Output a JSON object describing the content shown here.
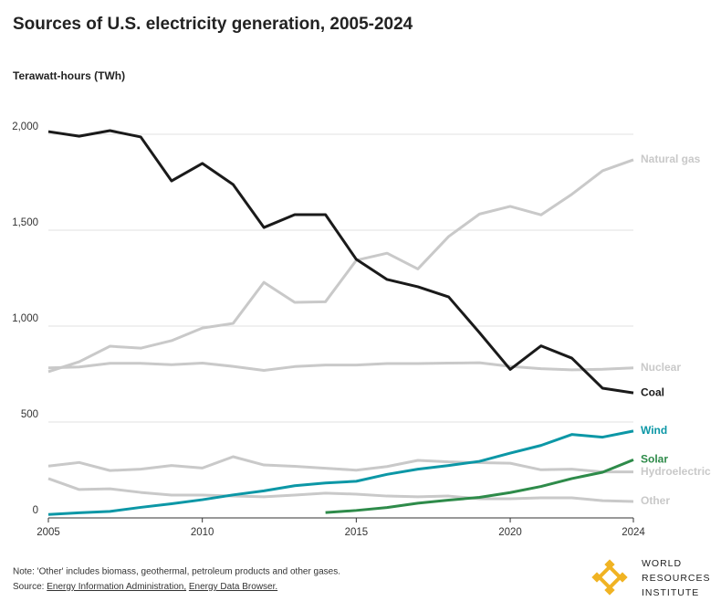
{
  "chart_data": {
    "type": "line",
    "title": "Sources of U.S. electricity generation, 2005-2024",
    "y_label": "Terawatt-hours (TWh)",
    "x": [
      2005,
      2006,
      2007,
      2008,
      2009,
      2010,
      2011,
      2012,
      2013,
      2014,
      2015,
      2016,
      2017,
      2018,
      2019,
      2020,
      2021,
      2022,
      2023,
      2024
    ],
    "xlim": [
      2005,
      2024
    ],
    "xticks": [
      2005,
      2010,
      2015,
      2020,
      2024
    ],
    "ylim": [
      0,
      2000
    ],
    "yticks": [
      0,
      500,
      {
        "value": 1000,
        "label": "1,000"
      },
      {
        "value": 1500,
        "label": "1,500"
      },
      {
        "value": 2000,
        "label": "2,000"
      }
    ],
    "grid": true,
    "series": [
      {
        "name": "Natural gas",
        "color": "#c9c9c9",
        "values": [
          762,
          814,
          895,
          885,
          924,
          990,
          1014,
          1228,
          1124,
          1127,
          1343,
          1380,
          1298,
          1467,
          1584,
          1624,
          1580,
          1687,
          1810,
          1867
        ]
      },
      {
        "name": "Nuclear",
        "color": "#c9c9c9",
        "values": [
          782,
          787,
          806,
          806,
          799,
          807,
          790,
          769,
          789,
          797,
          797,
          805,
          805,
          807,
          809,
          790,
          778,
          772,
          775,
          782
        ]
      },
      {
        "name": "Hydroelectric",
        "color": "#c9c9c9",
        "values": [
          270,
          289,
          247,
          254,
          273,
          260,
          319,
          276,
          269,
          259,
          249,
          268,
          300,
          292,
          288,
          285,
          251,
          254,
          240,
          240
        ]
      },
      {
        "name": "Other",
        "color": "#c9c9c9",
        "values": [
          205,
          148,
          152,
          133,
          119,
          119,
          114,
          110,
          119,
          129,
          124,
          114,
          110,
          114,
          100,
          100,
          105,
          105,
          90,
          86
        ]
      },
      {
        "name": "Coal",
        "color": "#1a1a1a",
        "values": [
          2014,
          1990,
          2019,
          1986,
          1757,
          1848,
          1738,
          1514,
          1581,
          1581,
          1348,
          1243,
          1205,
          1152,
          966,
          774,
          897,
          833,
          676,
          652
        ]
      },
      {
        "name": "Wind",
        "color": "#0c97a6",
        "values": [
          18,
          27,
          34,
          55,
          74,
          95,
          120,
          141,
          168,
          182,
          191,
          227,
          254,
          273,
          295,
          338,
          378,
          435,
          421,
          453
        ]
      },
      {
        "name": "Solar",
        "color": "#2e8b4a",
        "values": [
          null,
          null,
          null,
          null,
          null,
          null,
          null,
          null,
          null,
          28,
          39,
          54,
          77,
          93,
          107,
          132,
          164,
          205,
          238,
          303
        ]
      }
    ],
    "note": "Note: 'Other' includes biomass, geothermal, petroleum products and other gases.",
    "source_prefix": "Source:",
    "source_links": [
      "Energy Information Administration,",
      "Energy Data Browser."
    ],
    "logo_lines": [
      "WORLD",
      "RESOURCES",
      "INSTITUTE"
    ]
  }
}
